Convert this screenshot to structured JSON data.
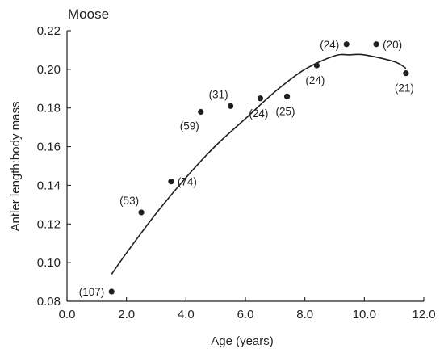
{
  "chart_data": {
    "type": "scatter",
    "title": "Moose",
    "xlabel": "Age (years)",
    "ylabel": "Antler length:body mass",
    "xlim": [
      0,
      12
    ],
    "ylim": [
      0.08,
      0.22
    ],
    "xticks": [
      "0.0",
      "2.0",
      "4.0",
      "6.0",
      "8.0",
      "10.0",
      "12.0"
    ],
    "yticks": [
      "0.08",
      "0.10",
      "0.12",
      "0.14",
      "0.16",
      "0.18",
      "0.20",
      "0.22"
    ],
    "grid": false,
    "points": [
      {
        "x": 1.5,
        "y": 0.085,
        "label": "(107)",
        "label_pos": "left"
      },
      {
        "x": 2.5,
        "y": 0.126,
        "label": "(53)",
        "label_pos": "above-left"
      },
      {
        "x": 3.5,
        "y": 0.142,
        "label": "(74)",
        "label_pos": "right"
      },
      {
        "x": 4.5,
        "y": 0.178,
        "label": "(59)",
        "label_pos": "below-left"
      },
      {
        "x": 5.5,
        "y": 0.181,
        "label": "(31)",
        "label_pos": "above-left"
      },
      {
        "x": 6.5,
        "y": 0.185,
        "label": "(24)",
        "label_pos": "below"
      },
      {
        "x": 7.4,
        "y": 0.186,
        "label": "(25)",
        "label_pos": "below"
      },
      {
        "x": 8.4,
        "y": 0.202,
        "label": "(24)",
        "label_pos": "below"
      },
      {
        "x": 9.4,
        "y": 0.213,
        "label": "(24)",
        "label_pos": "left"
      },
      {
        "x": 10.4,
        "y": 0.213,
        "label": "(20)",
        "label_pos": "right"
      },
      {
        "x": 11.4,
        "y": 0.198,
        "label": "(21)",
        "label_pos": "below"
      }
    ],
    "fit_curve": {
      "type": "quadratic",
      "x": [
        1.5,
        2.0,
        3.0,
        4.0,
        5.0,
        6.0,
        7.0,
        8.0,
        9.0,
        9.5,
        10.0,
        11.0,
        11.4
      ],
      "y": [
        0.094,
        0.105,
        0.1255,
        0.144,
        0.1605,
        0.1745,
        0.1885,
        0.2,
        0.207,
        0.2075,
        0.2075,
        0.204,
        0.2005
      ]
    },
    "colors": {
      "ink": "#231f20",
      "background": "#ffffff"
    }
  }
}
